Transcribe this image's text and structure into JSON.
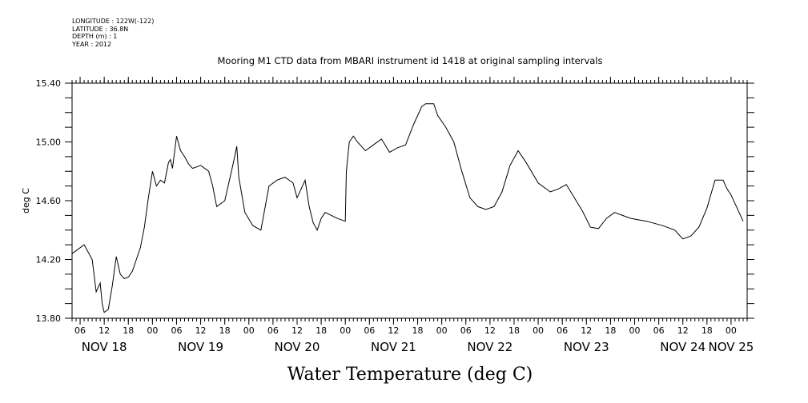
{
  "meta": {
    "longitude": "LONGITUDE : 122W(-122)",
    "latitude": "LATITUDE : 36.8N",
    "depth": "DEPTH (m) : 1",
    "year": "YEAR : 2012"
  },
  "chart_data": {
    "type": "line",
    "title": "Mooring M1 CTD data from MBARI instrument id 1418 at original sampling intervals",
    "caption": "Water Temperature (deg C)",
    "ylabel": "deg C",
    "xlabel": "",
    "ylim": [
      13.8,
      15.4
    ],
    "yticks": [
      "13.80",
      "14.20",
      "14.60",
      "15.00",
      "15.40"
    ],
    "xlim": [
      "2012-11-18T04:00",
      "2012-11-25T04:00"
    ],
    "hour_ticks": [
      "06",
      "12",
      "18",
      "00",
      "06",
      "12",
      "18",
      "00",
      "06",
      "12",
      "18",
      "00",
      "06",
      "12",
      "18",
      "00",
      "06",
      "12",
      "18",
      "00",
      "06",
      "12",
      "18",
      "00",
      "06",
      "12",
      "18",
      "00",
      "06",
      "12",
      "18",
      "00"
    ],
    "day_labels": [
      "NOV 18",
      "NOV 19",
      "NOV 20",
      "NOV 21",
      "NOV 22",
      "NOV 23",
      "NOV 24",
      "NOV 25"
    ],
    "grid": false,
    "series": [
      {
        "x": [
          "2012-11-18T04:00",
          "2012-11-18T07:00",
          "2012-11-18T09:00",
          "2012-11-18T10:00",
          "2012-11-18T11:00",
          "2012-11-18T11:30",
          "2012-11-18T12:00",
          "2012-11-18T13:00",
          "2012-11-18T14:00",
          "2012-11-18T15:00",
          "2012-11-18T16:00",
          "2012-11-18T17:00",
          "2012-11-18T18:00",
          "2012-11-18T19:00",
          "2012-11-18T20:00",
          "2012-11-18T21:00",
          "2012-11-18T22:00",
          "2012-11-18T23:00",
          "2012-11-19T00:00",
          "2012-11-19T01:00",
          "2012-11-19T02:00",
          "2012-11-19T03:00",
          "2012-11-19T04:00",
          "2012-11-19T04:30",
          "2012-11-19T05:00",
          "2012-11-19T06:00",
          "2012-11-19T07:00",
          "2012-11-19T08:00",
          "2012-11-19T09:00",
          "2012-11-19T10:00",
          "2012-11-19T12:00",
          "2012-11-19T14:00",
          "2012-11-19T15:00",
          "2012-11-19T16:00",
          "2012-11-19T18:00",
          "2012-11-19T20:00",
          "2012-11-19T21:00",
          "2012-11-19T21:30",
          "2012-11-19T23:00",
          "2012-11-20T01:00",
          "2012-11-20T03:00",
          "2012-11-20T05:00",
          "2012-11-20T07:00",
          "2012-11-20T09:00",
          "2012-11-20T11:00",
          "2012-11-20T12:00",
          "2012-11-20T13:00",
          "2012-11-20T14:00",
          "2012-11-20T15:00",
          "2012-11-20T16:00",
          "2012-11-20T17:00",
          "2012-11-20T18:00",
          "2012-11-20T19:00",
          "2012-11-20T22:00",
          "2012-11-21T00:00",
          "2012-11-21T00:15",
          "2012-11-21T01:00",
          "2012-11-21T02:00",
          "2012-11-21T03:00",
          "2012-11-21T05:00",
          "2012-11-21T07:00",
          "2012-11-21T09:00",
          "2012-11-21T11:00",
          "2012-11-21T13:00",
          "2012-11-21T15:00",
          "2012-11-21T17:00",
          "2012-11-21T19:00",
          "2012-11-21T20:00",
          "2012-11-21T22:00",
          "2012-11-21T23:00",
          "2012-11-22T01:00",
          "2012-11-22T03:00",
          "2012-11-22T05:00",
          "2012-11-22T07:00",
          "2012-11-22T09:00",
          "2012-11-22T11:00",
          "2012-11-22T13:00",
          "2012-11-22T15:00",
          "2012-11-22T17:00",
          "2012-11-22T19:00",
          "2012-11-22T21:00",
          "2012-11-23T00:00",
          "2012-11-23T03:00",
          "2012-11-23T05:00",
          "2012-11-23T07:00",
          "2012-11-23T09:00",
          "2012-11-23T11:00",
          "2012-11-23T13:00",
          "2012-11-23T15:00",
          "2012-11-23T17:00",
          "2012-11-23T19:00",
          "2012-11-23T21:00",
          "2012-11-23T23:00",
          "2012-11-24T03:00",
          "2012-11-24T07:00",
          "2012-11-24T10:00",
          "2012-11-24T12:00",
          "2012-11-24T14:00",
          "2012-11-24T16:00",
          "2012-11-24T18:00",
          "2012-11-24T20:00",
          "2012-11-24T22:00",
          "2012-11-24T23:00",
          "2012-11-25T00:00",
          "2012-11-25T01:00",
          "2012-11-25T03:00"
        ],
        "y": [
          14.24,
          14.3,
          14.2,
          13.98,
          14.04,
          13.9,
          13.84,
          13.86,
          14.02,
          14.22,
          14.1,
          14.07,
          14.08,
          14.12,
          14.2,
          14.28,
          14.42,
          14.62,
          14.8,
          14.7,
          14.74,
          14.72,
          14.86,
          14.88,
          14.82,
          15.04,
          14.94,
          14.9,
          14.85,
          14.82,
          14.84,
          14.8,
          14.7,
          14.56,
          14.6,
          14.84,
          14.97,
          14.76,
          14.52,
          14.43,
          14.4,
          14.7,
          14.74,
          14.76,
          14.72,
          14.62,
          14.68,
          14.74,
          14.56,
          14.45,
          14.4,
          14.48,
          14.52,
          14.48,
          14.46,
          14.8,
          15.0,
          15.04,
          15.0,
          14.94,
          14.98,
          15.02,
          14.93,
          14.96,
          14.98,
          15.12,
          15.24,
          15.26,
          15.26,
          15.18,
          15.1,
          15.0,
          14.8,
          14.62,
          14.56,
          14.54,
          14.56,
          14.66,
          14.84,
          14.94,
          14.86,
          14.72,
          14.66,
          14.68,
          14.71,
          14.62,
          14.53,
          14.42,
          14.41,
          14.48,
          14.52,
          14.5,
          14.48,
          14.46,
          14.43,
          14.4,
          14.34,
          14.36,
          14.42,
          14.55,
          14.74,
          14.74,
          14.68,
          14.64,
          14.58,
          14.46
        ]
      }
    ]
  }
}
